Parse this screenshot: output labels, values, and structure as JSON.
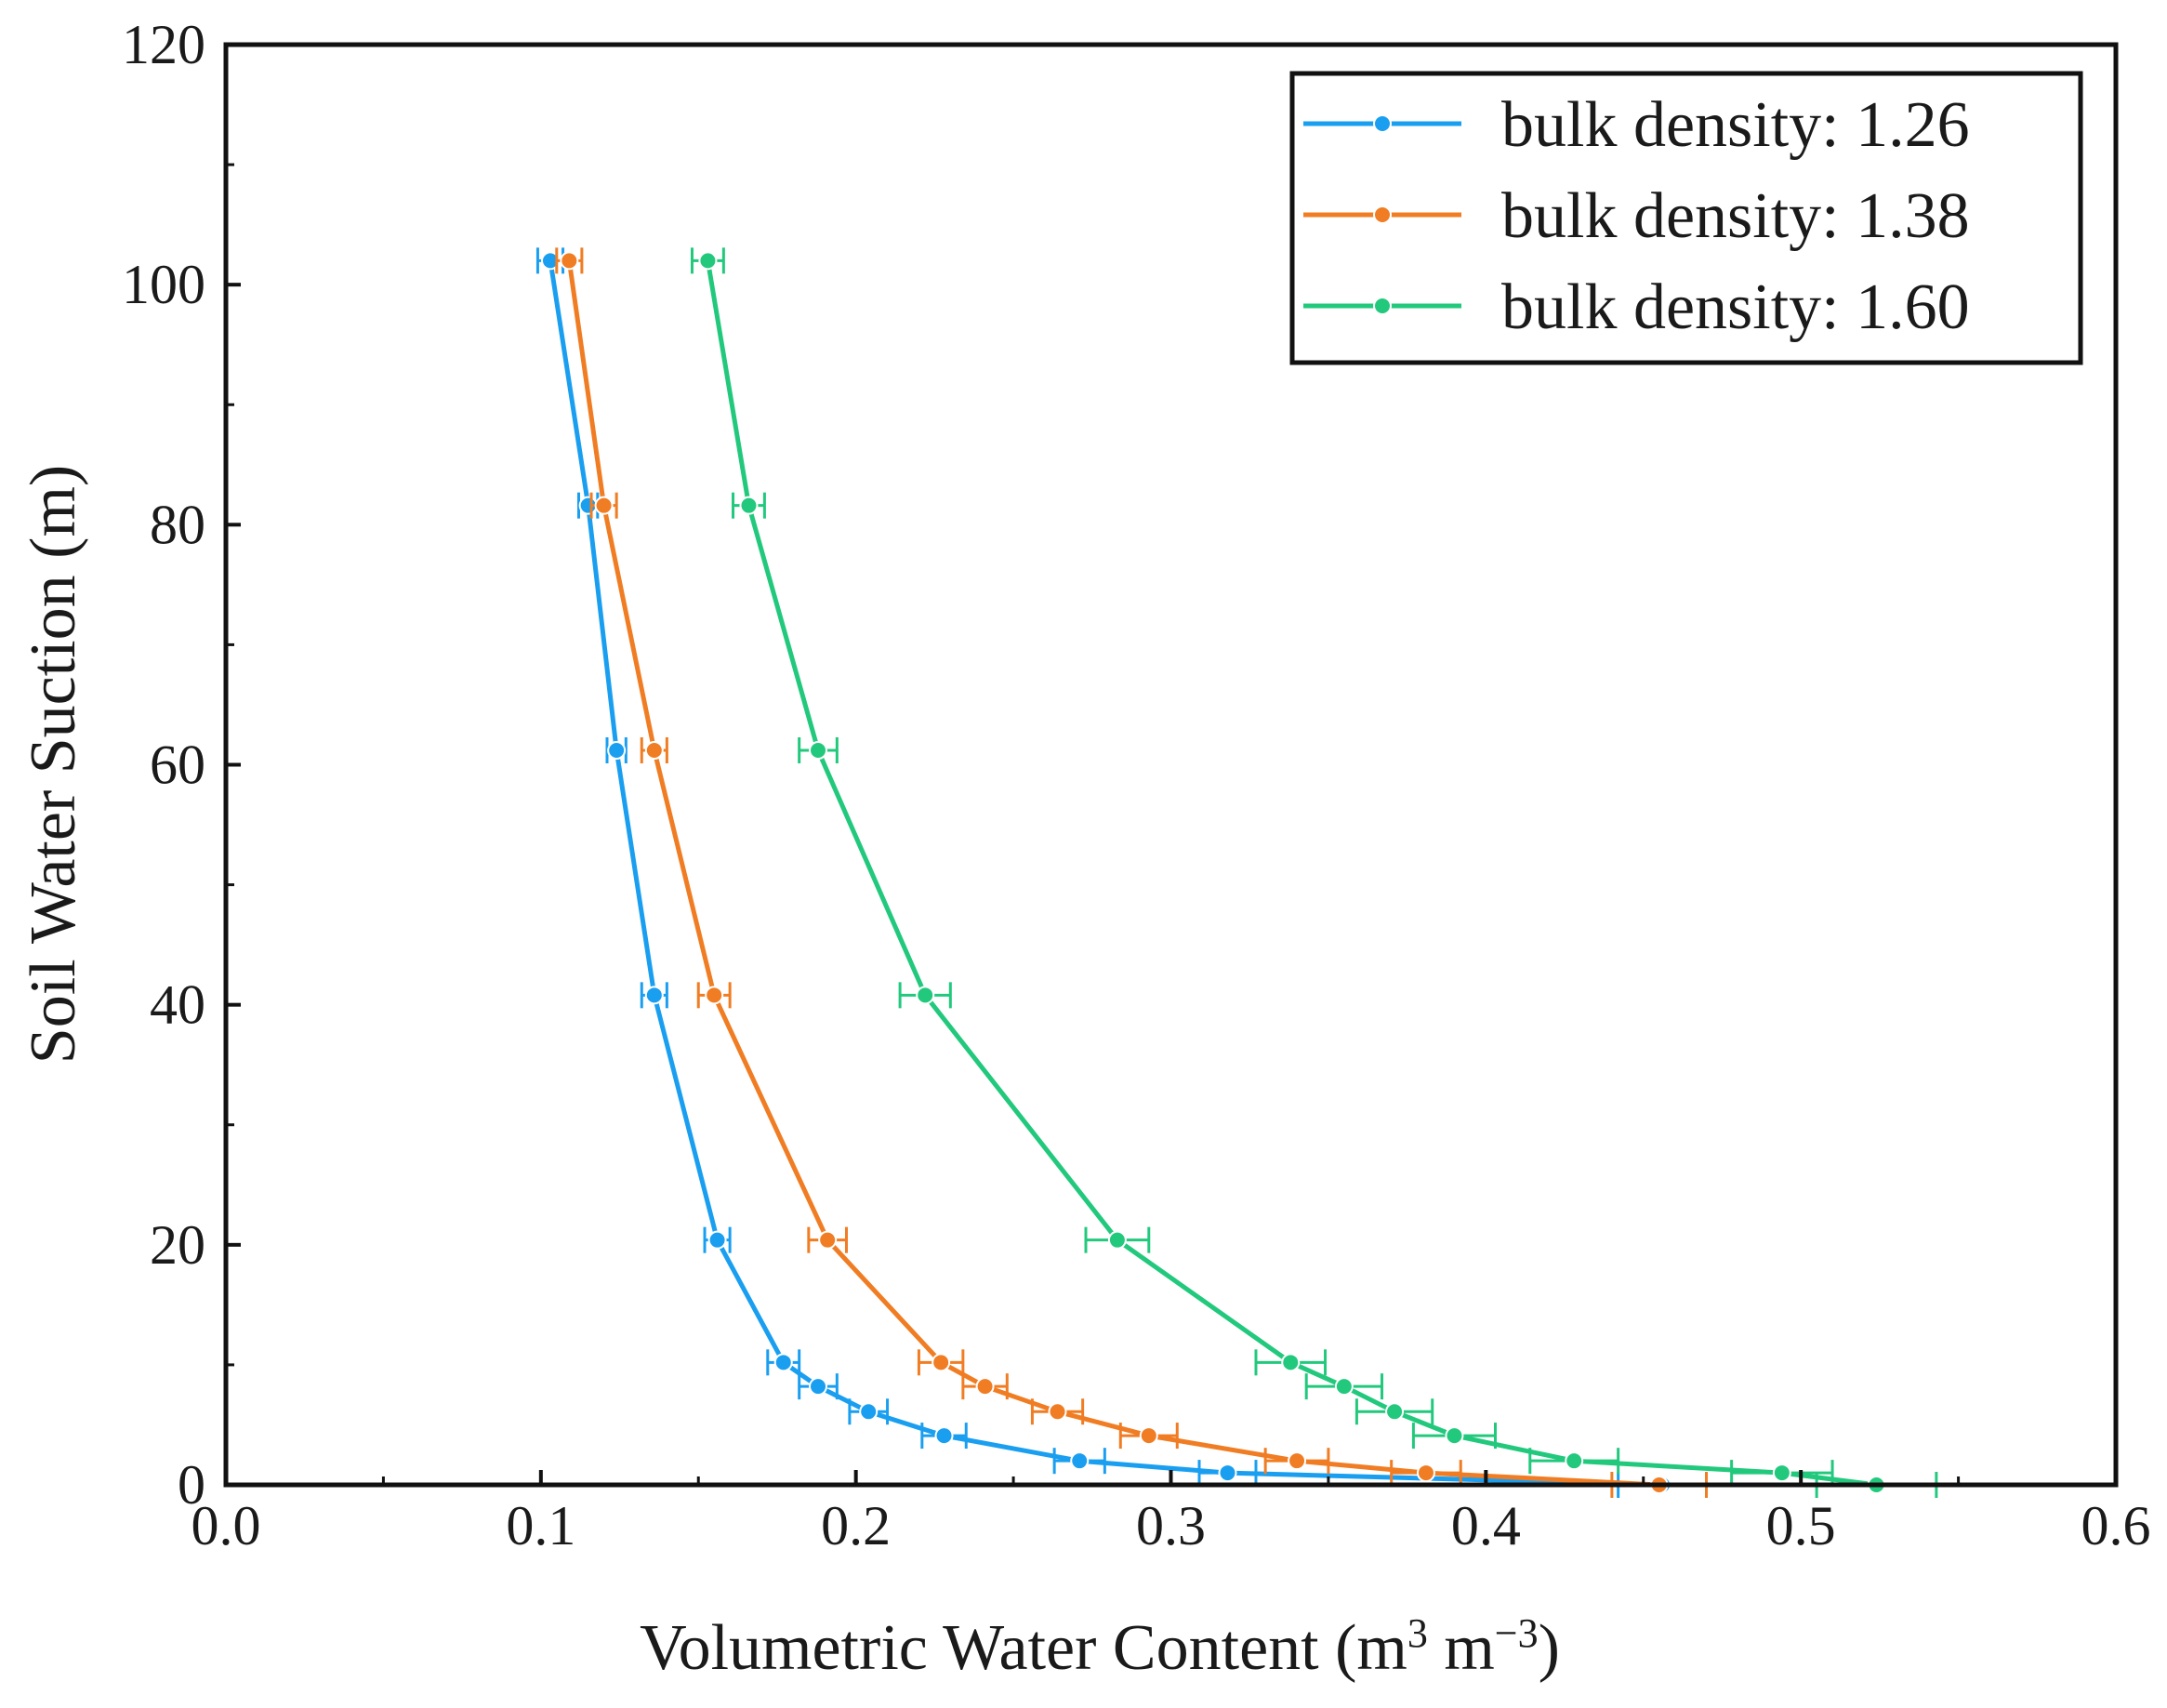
{
  "chart_data": {
    "type": "line",
    "title": "",
    "xlabel": "Volumetric Water Content (m",
    "xlabel_sup1": "3",
    "xlabel_mid": " m",
    "xlabel_sup2": "−3",
    "xlabel_end": ")",
    "ylabel": "Soil Water Suction (m)",
    "xlim": [
      0,
      0.6
    ],
    "ylim": [
      0,
      120
    ],
    "x_ticks": [
      0,
      0.1,
      0.2,
      0.3,
      0.4,
      0.5,
      0.6
    ],
    "x_tick_labels": [
      "0.0",
      "0.1",
      "0.2",
      "0.3",
      "0.4",
      "0.5",
      "0.6"
    ],
    "y_ticks": [
      0,
      20,
      40,
      60,
      80,
      100,
      120
    ],
    "y_tick_labels": [
      "0",
      "20",
      "40",
      "60",
      "80",
      "100",
      "120"
    ],
    "grid": false,
    "legend_position": "top-right",
    "series": [
      {
        "name": "bulk density: 1.26",
        "color": "#1a9ff0",
        "points": [
          {
            "x": 0.103,
            "y": 102,
            "err": 0.004
          },
          {
            "x": 0.115,
            "y": 81.6,
            "err": 0.003
          },
          {
            "x": 0.124,
            "y": 61.2,
            "err": 0.003
          },
          {
            "x": 0.136,
            "y": 40.8,
            "err": 0.004
          },
          {
            "x": 0.156,
            "y": 20.4,
            "err": 0.004
          },
          {
            "x": 0.177,
            "y": 10.2,
            "err": 0.005
          },
          {
            "x": 0.188,
            "y": 8.2,
            "err": 0.006
          },
          {
            "x": 0.204,
            "y": 6.1,
            "err": 0.006
          },
          {
            "x": 0.228,
            "y": 4.1,
            "err": 0.007
          },
          {
            "x": 0.271,
            "y": 2.0,
            "err": 0.008
          },
          {
            "x": 0.318,
            "y": 1.0,
            "err": 0.009
          },
          {
            "x": 0.456,
            "y": 0.0,
            "err": 0.014
          }
        ]
      },
      {
        "name": "bulk density: 1.38",
        "color": "#f07d23",
        "points": [
          {
            "x": 0.109,
            "y": 102,
            "err": 0.004
          },
          {
            "x": 0.12,
            "y": 81.6,
            "err": 0.004
          },
          {
            "x": 0.136,
            "y": 61.2,
            "err": 0.004
          },
          {
            "x": 0.155,
            "y": 40.8,
            "err": 0.005
          },
          {
            "x": 0.191,
            "y": 20.4,
            "err": 0.006
          },
          {
            "x": 0.227,
            "y": 10.2,
            "err": 0.007
          },
          {
            "x": 0.241,
            "y": 8.2,
            "err": 0.007
          },
          {
            "x": 0.264,
            "y": 6.1,
            "err": 0.008
          },
          {
            "x": 0.293,
            "y": 4.1,
            "err": 0.009
          },
          {
            "x": 0.34,
            "y": 2.0,
            "err": 0.01
          },
          {
            "x": 0.381,
            "y": 1.0,
            "err": 0.011
          },
          {
            "x": 0.455,
            "y": 0.0,
            "err": 0.015
          }
        ]
      },
      {
        "name": "bulk density: 1.60",
        "color": "#22c97d",
        "points": [
          {
            "x": 0.153,
            "y": 102,
            "err": 0.005
          },
          {
            "x": 0.166,
            "y": 81.6,
            "err": 0.005
          },
          {
            "x": 0.188,
            "y": 61.2,
            "err": 0.006
          },
          {
            "x": 0.222,
            "y": 40.8,
            "err": 0.008
          },
          {
            "x": 0.283,
            "y": 20.4,
            "err": 0.01
          },
          {
            "x": 0.338,
            "y": 10.2,
            "err": 0.011
          },
          {
            "x": 0.355,
            "y": 8.2,
            "err": 0.012
          },
          {
            "x": 0.371,
            "y": 6.1,
            "err": 0.012
          },
          {
            "x": 0.39,
            "y": 4.1,
            "err": 0.013
          },
          {
            "x": 0.428,
            "y": 2.0,
            "err": 0.014
          },
          {
            "x": 0.494,
            "y": 1.0,
            "err": 0.016
          },
          {
            "x": 0.524,
            "y": 0.0,
            "err": 0.019
          }
        ]
      }
    ]
  }
}
